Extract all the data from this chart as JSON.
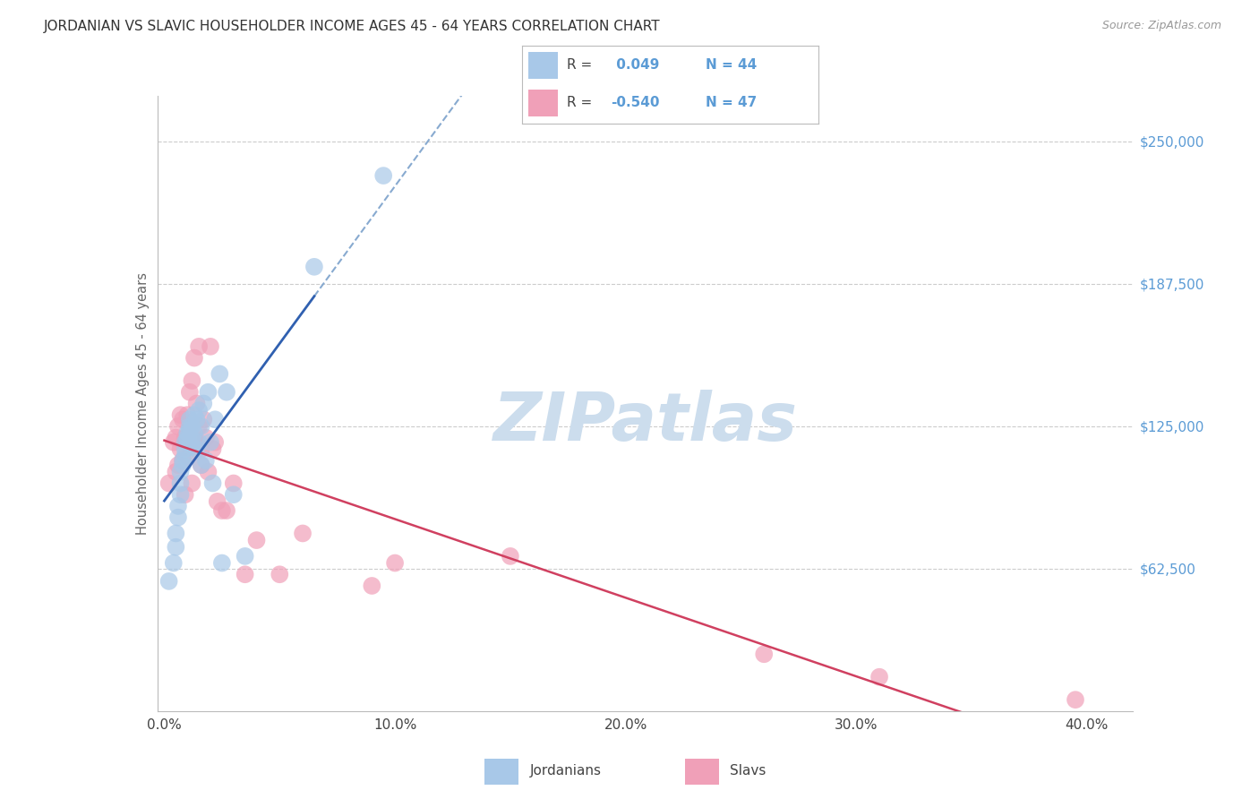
{
  "title": "JORDANIAN VS SLAVIC HOUSEHOLDER INCOME AGES 45 - 64 YEARS CORRELATION CHART",
  "source": "Source: ZipAtlas.com",
  "ylabel": "Householder Income Ages 45 - 64 years",
  "xlabel_ticks": [
    "0.0%",
    "10.0%",
    "20.0%",
    "30.0%",
    "40.0%"
  ],
  "xlabel_vals": [
    0.0,
    0.1,
    0.2,
    0.3,
    0.4
  ],
  "ylabel_ticks": [
    "$62,500",
    "$125,000",
    "$187,500",
    "$250,000"
  ],
  "ylabel_vals": [
    62500,
    125000,
    187500,
    250000
  ],
  "xlim": [
    -0.003,
    0.42
  ],
  "ylim": [
    0,
    270000
  ],
  "r_jordanian": 0.049,
  "n_jordanian": 44,
  "r_slavic": -0.54,
  "n_slavic": 47,
  "color_jordanian": "#a8c8e8",
  "color_slavic": "#f0a0b8",
  "line_color_jordanian_solid": "#3060b0",
  "line_color_jordanian_dash": "#88aad0",
  "line_color_slavic": "#d04060",
  "background_color": "#ffffff",
  "grid_color": "#cccccc",
  "title_color": "#333333",
  "axis_label_color": "#666666",
  "right_tick_color": "#5b9bd5",
  "watermark_color": "#ccdded",
  "jordanians_x": [
    0.002,
    0.004,
    0.005,
    0.005,
    0.006,
    0.006,
    0.007,
    0.007,
    0.007,
    0.008,
    0.008,
    0.009,
    0.009,
    0.009,
    0.01,
    0.01,
    0.01,
    0.011,
    0.011,
    0.011,
    0.012,
    0.012,
    0.012,
    0.013,
    0.013,
    0.014,
    0.014,
    0.015,
    0.015,
    0.016,
    0.016,
    0.017,
    0.018,
    0.019,
    0.02,
    0.021,
    0.022,
    0.024,
    0.025,
    0.027,
    0.03,
    0.035,
    0.065,
    0.095
  ],
  "jordanians_y": [
    57000,
    65000,
    72000,
    78000,
    85000,
    90000,
    95000,
    100000,
    105000,
    108000,
    110000,
    112000,
    115000,
    118000,
    119000,
    120000,
    122000,
    123000,
    125000,
    128000,
    116000,
    119000,
    125000,
    122000,
    130000,
    115000,
    128000,
    118000,
    132000,
    108000,
    125000,
    135000,
    110000,
    140000,
    118000,
    100000,
    128000,
    148000,
    65000,
    140000,
    95000,
    68000,
    195000,
    235000
  ],
  "slavs_x": [
    0.002,
    0.004,
    0.005,
    0.005,
    0.006,
    0.006,
    0.007,
    0.007,
    0.008,
    0.008,
    0.009,
    0.009,
    0.01,
    0.01,
    0.01,
    0.011,
    0.011,
    0.012,
    0.012,
    0.013,
    0.013,
    0.014,
    0.014,
    0.015,
    0.015,
    0.016,
    0.016,
    0.017,
    0.018,
    0.019,
    0.02,
    0.021,
    0.022,
    0.023,
    0.025,
    0.027,
    0.03,
    0.035,
    0.04,
    0.05,
    0.06,
    0.09,
    0.1,
    0.15,
    0.26,
    0.31,
    0.395
  ],
  "slavs_y": [
    100000,
    118000,
    105000,
    120000,
    108000,
    125000,
    115000,
    130000,
    110000,
    128000,
    95000,
    120000,
    118000,
    130000,
    112000,
    125000,
    140000,
    100000,
    145000,
    155000,
    120000,
    118000,
    135000,
    125000,
    160000,
    115000,
    108000,
    128000,
    120000,
    105000,
    160000,
    115000,
    118000,
    92000,
    88000,
    88000,
    100000,
    60000,
    75000,
    60000,
    78000,
    55000,
    65000,
    68000,
    25000,
    15000,
    5000
  ]
}
